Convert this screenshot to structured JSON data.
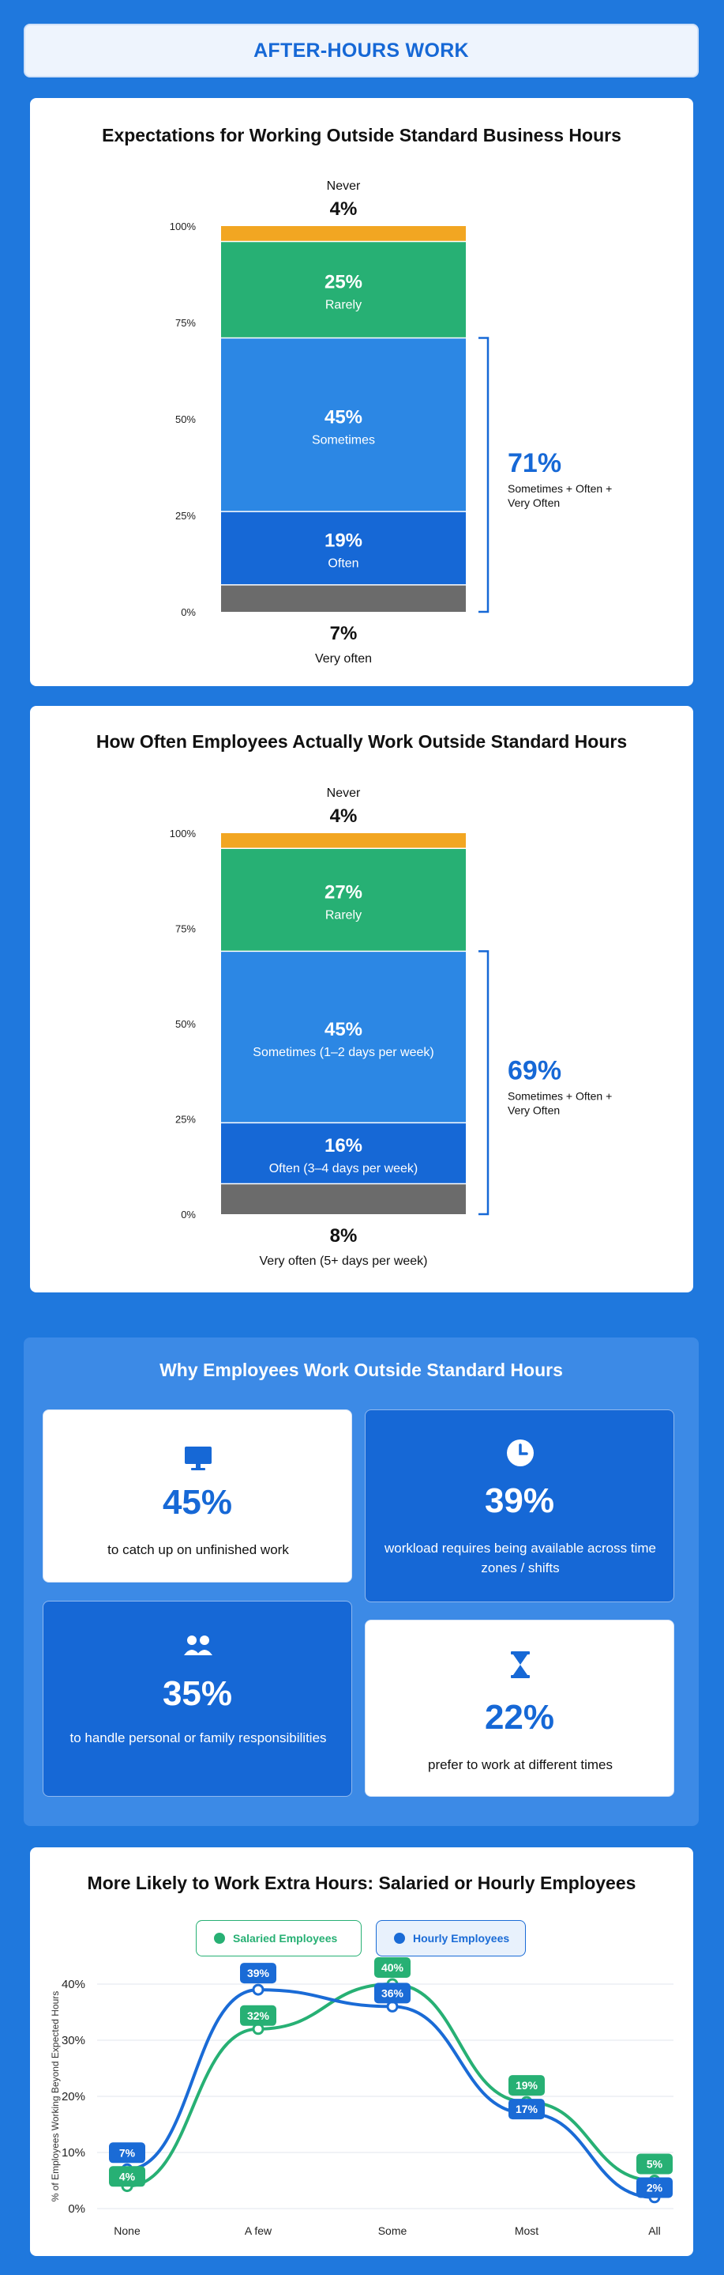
{
  "header": {
    "title": "AFTER-HOURS WORK"
  },
  "colors": {
    "never": "#f2a622",
    "rarely": "#27b074",
    "sometimes": "#2c87e4",
    "often": "#1668d6",
    "very_often": "#6b6b6b",
    "salaried": "#27b074",
    "hourly": "#1a6bd6"
  },
  "chart1": {
    "title": "Expectations for Working Outside Standard Business Hours",
    "bracket_pct": "71%",
    "bracket_label": "Sometimes + Often + Very Often"
  },
  "chart2": {
    "title": "How Often Employees Actually Work Outside Standard Hours",
    "bracket_pct": "69%",
    "bracket_label": "Sometimes + Often + Very Often"
  },
  "reasons": {
    "title": "Why Employees Work Outside Standard Hours",
    "items": [
      {
        "pct": "45%",
        "label": "to catch up on unfinished work",
        "icon": "monitor-icon"
      },
      {
        "pct": "39%",
        "label": "workload requires being available across time zones / shifts",
        "icon": "clock-icon"
      },
      {
        "pct": "35%",
        "label": "to handle personal or family responsibilities",
        "icon": "people-icon"
      },
      {
        "pct": "22%",
        "label": "prefer to work at different times",
        "icon": "hourglass-icon"
      }
    ]
  },
  "chart3": {
    "title": "More Likely to Work Extra Hours: Salaried or Hourly Employees"
  },
  "chart_data": [
    {
      "type": "bar",
      "stacked": true,
      "title": "Expectations for Working Outside Standard Business Hours",
      "yticks": [
        "0%",
        "25%",
        "50%",
        "75%",
        "100%"
      ],
      "ylim": [
        0,
        100
      ],
      "segments": [
        {
          "name": "Very often",
          "value": 7,
          "label": "7%",
          "key": "very_often"
        },
        {
          "name": "Often",
          "value": 19,
          "label": "19%",
          "key": "often"
        },
        {
          "name": "Sometimes",
          "value": 45,
          "label": "45%",
          "key": "sometimes"
        },
        {
          "name": "Rarely",
          "value": 25,
          "label": "25%",
          "key": "rarely"
        },
        {
          "name": "Never",
          "value": 4,
          "label": "4%",
          "key": "never"
        }
      ]
    },
    {
      "type": "bar",
      "stacked": true,
      "title": "How Often Employees Actually Work Outside Standard Hours",
      "yticks": [
        "0%",
        "25%",
        "50%",
        "75%",
        "100%"
      ],
      "ylim": [
        0,
        100
      ],
      "segments": [
        {
          "name": "Very often (5+ days per week)",
          "value": 8,
          "label": "8%",
          "key": "very_often"
        },
        {
          "name": "Often (3–4 days per week)",
          "value": 16,
          "label": "16%",
          "key": "often"
        },
        {
          "name": "Sometimes (1–2 days per week)",
          "value": 45,
          "label": "45%",
          "key": "sometimes"
        },
        {
          "name": "Rarely",
          "value": 27,
          "label": "27%",
          "key": "rarely"
        },
        {
          "name": "Never",
          "value": 4,
          "label": "4%",
          "key": "never"
        }
      ]
    },
    {
      "type": "line",
      "title": "More Likely to Work Extra Hours: Salaried or Hourly Employees",
      "ylabel": "% of Employees Working Beyond Expected Hours",
      "categories": [
        "None",
        "A few",
        "Some",
        "Most",
        "All"
      ],
      "yticks": [
        "0%",
        "10%",
        "20%",
        "30%",
        "40%"
      ],
      "ylim": [
        0,
        40
      ],
      "series": [
        {
          "name": "Salaried Employees",
          "values": [
            4,
            32,
            40,
            19,
            5
          ],
          "labels": [
            "4%",
            "32%",
            "40%",
            "19%",
            "5%"
          ],
          "key": "salaried"
        },
        {
          "name": "Hourly Employees",
          "values": [
            7,
            39,
            36,
            17,
            2
          ],
          "labels": [
            "7%",
            "39%",
            "36%",
            "17%",
            "2%"
          ],
          "key": "hourly"
        }
      ]
    }
  ]
}
